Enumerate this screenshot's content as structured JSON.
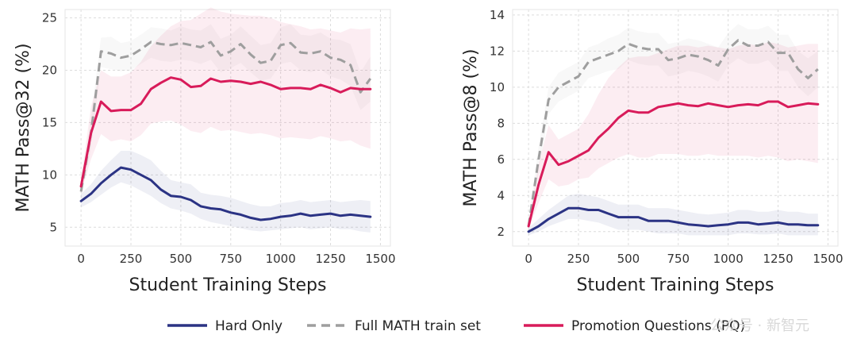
{
  "chart_data": [
    {
      "type": "line",
      "title": "",
      "xlabel": "Student Training Steps",
      "ylabel": "MATH Pass@32 (%)",
      "xlim": [
        -80,
        1550
      ],
      "ylim": [
        3.2,
        25.8
      ],
      "xticks": [
        0,
        250,
        500,
        750,
        1000,
        1250,
        1500
      ],
      "yticks": [
        5,
        10,
        15,
        20,
        25
      ],
      "grid": true,
      "x": [
        0,
        50,
        100,
        150,
        200,
        250,
        300,
        350,
        400,
        450,
        500,
        550,
        600,
        650,
        700,
        750,
        800,
        850,
        900,
        950,
        1000,
        1050,
        1100,
        1150,
        1200,
        1250,
        1300,
        1350,
        1400,
        1450
      ],
      "series": [
        {
          "name": "Hard Only",
          "color": "#2b3384",
          "style": "solid",
          "values": [
            7.5,
            8.2,
            9.2,
            10.0,
            10.7,
            10.5,
            10.0,
            9.5,
            8.6,
            8.0,
            7.9,
            7.6,
            7.0,
            6.8,
            6.7,
            6.4,
            6.2,
            5.9,
            5.7,
            5.8,
            6.0,
            6.1,
            6.3,
            6.1,
            6.2,
            6.3,
            6.1,
            6.2,
            6.1,
            6.0
          ],
          "lower": [
            6.9,
            7.4,
            8.1,
            8.8,
            9.3,
            9.0,
            8.5,
            8.0,
            7.3,
            6.8,
            6.6,
            6.3,
            5.8,
            5.5,
            5.3,
            5.1,
            4.9,
            4.7,
            4.6,
            4.7,
            4.8,
            4.9,
            5.0,
            4.8,
            4.9,
            5.0,
            4.8,
            4.8,
            4.6,
            4.5
          ],
          "upper": [
            8.2,
            9.1,
            10.4,
            11.4,
            12.3,
            12.3,
            11.9,
            11.4,
            10.4,
            9.5,
            9.3,
            9.1,
            8.3,
            8.1,
            8.0,
            7.8,
            7.5,
            7.2,
            7.0,
            7.0,
            7.3,
            7.4,
            7.6,
            7.4,
            7.5,
            7.6,
            7.4,
            7.5,
            7.6,
            7.5
          ]
        },
        {
          "name": "Full MATH train set",
          "color": "#9e9e9e",
          "style": "dashed",
          "values": [
            8.4,
            14.0,
            21.8,
            21.6,
            21.2,
            21.4,
            22.0,
            22.7,
            22.5,
            22.4,
            22.6,
            22.4,
            22.2,
            22.7,
            21.4,
            21.8,
            22.5,
            21.5,
            20.7,
            20.9,
            22.4,
            22.6,
            21.7,
            21.6,
            21.8,
            21.2,
            21.0,
            20.5,
            17.9,
            19.2
          ],
          "lower": [
            7.8,
            12.5,
            20.3,
            20.1,
            19.9,
            20.0,
            20.6,
            21.2,
            20.9,
            20.8,
            21.0,
            20.9,
            20.6,
            21.0,
            19.8,
            20.2,
            20.7,
            19.8,
            19.0,
            19.2,
            20.6,
            20.8,
            20.0,
            19.8,
            20.1,
            19.4,
            19.1,
            18.5,
            16.2,
            17.0
          ],
          "upper": [
            9.0,
            15.5,
            23.1,
            23.2,
            22.6,
            22.8,
            23.4,
            24.1,
            24.0,
            23.8,
            24.2,
            23.9,
            23.8,
            24.4,
            23.0,
            23.4,
            24.2,
            23.3,
            22.4,
            22.6,
            24.1,
            24.4,
            23.4,
            23.3,
            23.6,
            23.0,
            22.9,
            22.5,
            19.8,
            21.3
          ]
        },
        {
          "name": "Promotion Questions (PQ)",
          "color": "#d81b5a",
          "style": "solid",
          "values": [
            8.9,
            14.0,
            17.0,
            16.1,
            16.2,
            16.2,
            16.8,
            18.2,
            18.8,
            19.3,
            19.1,
            18.4,
            18.5,
            19.2,
            18.9,
            19.0,
            18.9,
            18.7,
            18.9,
            18.6,
            18.2,
            18.3,
            18.3,
            18.2,
            18.6,
            18.3,
            17.9,
            18.3,
            18.2,
            18.2
          ],
          "lower": [
            8.3,
            11.5,
            13.9,
            13.2,
            13.4,
            13.2,
            13.8,
            14.9,
            15.1,
            15.2,
            14.8,
            14.2,
            14.0,
            14.6,
            14.2,
            14.3,
            14.1,
            13.9,
            14.0,
            13.8,
            13.5,
            13.6,
            13.5,
            13.4,
            13.7,
            13.5,
            13.2,
            13.3,
            12.8,
            12.5
          ],
          "upper": [
            9.6,
            16.5,
            20.0,
            19.4,
            19.4,
            19.8,
            20.8,
            22.3,
            23.3,
            24.2,
            24.7,
            24.8,
            25.4,
            26.0,
            25.6,
            25.4,
            25.3,
            25.2,
            25.2,
            25.0,
            24.6,
            24.4,
            24.2,
            23.9,
            24.0,
            23.8,
            23.6,
            24.0,
            23.9,
            24.0
          ]
        }
      ]
    },
    {
      "type": "line",
      "title": "",
      "xlabel": "Student Training Steps",
      "ylabel": "MATH Pass@8 (%)",
      "xlim": [
        -80,
        1550
      ],
      "ylim": [
        1.2,
        14.3
      ],
      "xticks": [
        0,
        250,
        500,
        750,
        1000,
        1250,
        1500
      ],
      "yticks": [
        2,
        4,
        6,
        8,
        10,
        12,
        14
      ],
      "grid": true,
      "x": [
        0,
        50,
        100,
        150,
        200,
        250,
        300,
        350,
        400,
        450,
        500,
        550,
        600,
        650,
        700,
        750,
        800,
        850,
        900,
        950,
        1000,
        1050,
        1100,
        1150,
        1200,
        1250,
        1300,
        1350,
        1400,
        1450
      ],
      "series": [
        {
          "name": "Hard Only",
          "color": "#2b3384",
          "style": "solid",
          "values": [
            2.0,
            2.3,
            2.7,
            3.0,
            3.3,
            3.3,
            3.2,
            3.2,
            3.0,
            2.8,
            2.8,
            2.8,
            2.6,
            2.6,
            2.6,
            2.5,
            2.4,
            2.35,
            2.3,
            2.35,
            2.4,
            2.5,
            2.5,
            2.4,
            2.45,
            2.5,
            2.4,
            2.4,
            2.35,
            2.35
          ],
          "lower": [
            1.8,
            2.0,
            2.3,
            2.5,
            2.7,
            2.7,
            2.6,
            2.5,
            2.3,
            2.1,
            2.1,
            2.1,
            2.0,
            1.9,
            1.9,
            1.9,
            1.8,
            1.8,
            1.8,
            1.8,
            1.8,
            1.9,
            1.9,
            1.85,
            1.85,
            1.9,
            1.8,
            1.8,
            1.8,
            1.8
          ],
          "upper": [
            2.2,
            2.7,
            3.2,
            3.6,
            4.0,
            4.1,
            4.0,
            3.9,
            3.7,
            3.5,
            3.5,
            3.5,
            3.3,
            3.3,
            3.3,
            3.2,
            3.1,
            3.0,
            2.95,
            3.0,
            3.05,
            3.2,
            3.2,
            3.1,
            3.1,
            3.2,
            3.1,
            3.1,
            3.0,
            3.0
          ]
        },
        {
          "name": "Full MATH train set",
          "color": "#9e9e9e",
          "style": "dashed",
          "values": [
            2.3,
            6.0,
            9.3,
            10.0,
            10.3,
            10.6,
            11.4,
            11.6,
            11.8,
            12.0,
            12.4,
            12.2,
            12.1,
            12.1,
            11.5,
            11.6,
            11.8,
            11.7,
            11.5,
            11.2,
            12.1,
            12.6,
            12.3,
            12.3,
            12.5,
            11.9,
            11.9,
            11.0,
            10.5,
            11.0
          ],
          "lower": [
            2.1,
            5.3,
            8.5,
            9.2,
            9.5,
            9.8,
            10.5,
            10.7,
            10.9,
            11.0,
            11.5,
            11.3,
            11.2,
            11.2,
            10.6,
            10.7,
            10.9,
            10.8,
            10.6,
            10.3,
            11.2,
            11.6,
            11.3,
            11.3,
            11.5,
            10.9,
            10.9,
            10.0,
            9.5,
            10.0
          ],
          "upper": [
            2.5,
            6.7,
            10.0,
            10.8,
            11.1,
            11.4,
            12.2,
            12.4,
            12.7,
            12.9,
            13.3,
            13.1,
            13.0,
            13.0,
            12.4,
            12.5,
            12.7,
            12.6,
            12.4,
            12.2,
            13.0,
            13.5,
            13.2,
            13.2,
            13.4,
            12.9,
            12.9,
            12.0,
            11.6,
            12.0
          ]
        },
        {
          "name": "Promotion Questions (PQ)",
          "color": "#d81b5a",
          "style": "solid",
          "values": [
            2.3,
            4.6,
            6.4,
            5.7,
            5.9,
            6.2,
            6.5,
            7.2,
            7.7,
            8.3,
            8.7,
            8.6,
            8.6,
            8.9,
            9.0,
            9.1,
            9.0,
            8.95,
            9.1,
            9.0,
            8.9,
            9.0,
            9.05,
            9.0,
            9.2,
            9.2,
            8.9,
            9.0,
            9.1,
            9.05
          ],
          "lower": [
            2.1,
            3.6,
            4.9,
            4.5,
            4.6,
            4.9,
            5.0,
            5.5,
            5.8,
            6.1,
            6.3,
            6.1,
            6.1,
            6.3,
            6.3,
            6.3,
            6.2,
            6.2,
            6.3,
            6.2,
            6.2,
            6.2,
            6.2,
            6.1,
            6.2,
            6.1,
            5.9,
            6.0,
            5.9,
            5.8
          ],
          "upper": [
            2.5,
            5.7,
            7.9,
            7.1,
            7.4,
            7.7,
            8.5,
            9.6,
            10.5,
            11.1,
            11.6,
            11.7,
            11.7,
            11.9,
            12.1,
            12.3,
            12.3,
            12.2,
            12.3,
            12.2,
            12.1,
            12.3,
            12.4,
            12.3,
            12.5,
            12.4,
            12.2,
            12.3,
            12.4,
            12.4
          ]
        }
      ]
    }
  ],
  "legend": {
    "position": "bottom-center",
    "items": [
      {
        "label": "Hard Only",
        "color": "#2b3384",
        "style": "solid"
      },
      {
        "label": "Full MATH train set",
        "color": "#9e9e9e",
        "style": "dashed"
      },
      {
        "label": "Promotion Questions (PQ)",
        "color": "#d81b5a",
        "style": "solid"
      }
    ]
  },
  "watermark": {
    "text": "公众号 · 新智元"
  }
}
